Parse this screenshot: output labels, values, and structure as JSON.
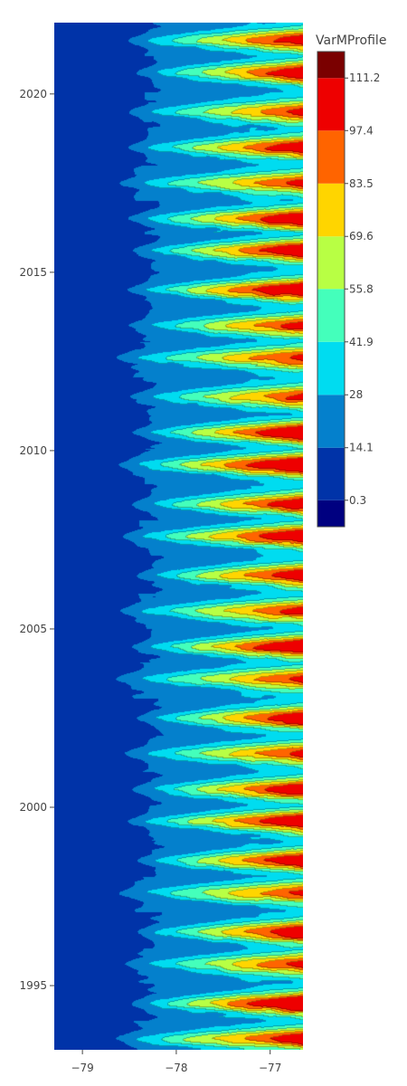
{
  "chart_data": {
    "type": "heatmap",
    "subtype": "filled-contour",
    "title": "",
    "xlabel": "",
    "ylabel": "",
    "xlim": [
      -79.3,
      -76.65
    ],
    "ylim": [
      1993.2,
      2022.0
    ],
    "x_ticks": [
      "−79",
      "−78",
      "−77"
    ],
    "x_tick_values": [
      -79,
      -78,
      -77
    ],
    "y_ticks": [
      "1995",
      "2000",
      "2005",
      "2010",
      "2015",
      "2020"
    ],
    "y_tick_values": [
      1995,
      2000,
      2005,
      2010,
      2015,
      2020
    ],
    "colorbar": {
      "title": "VarMProfile",
      "range": [
        -6.65,
        118.15
      ],
      "levels": [
        0.3,
        14.1,
        28,
        41.9,
        55.8,
        69.6,
        83.5,
        97.4,
        111.2
      ],
      "tick_labels": [
        "0.3",
        "14.1",
        "28",
        "41.9",
        "55.8",
        "69.6",
        "83.5",
        "97.4",
        "111.2"
      ],
      "colors": [
        "#000080",
        "#0033a8",
        "#0480cc",
        "#00dcf0",
        "#44ffbb",
        "#b8ff44",
        "#ffd500",
        "#ff6400",
        "#ee0000",
        "#7a0000"
      ]
    },
    "contour_colors": [
      "#0033a8",
      "#0480cc",
      "#00dcf0",
      "#44ffbb",
      "#b8ff44",
      "#ffd500",
      "#ff6400",
      "#ee0000"
    ],
    "band_boundaries": [
      14.1,
      28,
      41.9,
      55.8,
      69.6,
      83.5,
      97.4
    ],
    "pattern": "annual cycle: low values (deep blue) near x=-79 and in the first months of each year; high values (up to ~100) near x=-76.7 mid-year",
    "peak_years": [
      1993.5,
      1994.5,
      1995.6,
      1996.5,
      1997.6,
      1998.5,
      1999.6,
      2000.5,
      2001.5,
      2002.5,
      2003.6,
      2004.5,
      2005.5,
      2006.5,
      2007.6,
      2008.5,
      2009.6,
      2010.5,
      2011.5,
      2012.6,
      2013.5,
      2014.5,
      2015.6,
      2016.5,
      2017.5,
      2018.5,
      2019.5,
      2020.6,
      2021.5
    ],
    "peak_strengths": [
      0.82,
      0.98,
      0.72,
      0.86,
      0.7,
      0.88,
      0.92,
      0.86,
      0.74,
      0.86,
      0.7,
      0.93,
      0.75,
      0.86,
      0.9,
      0.84,
      0.98,
      0.93,
      0.72,
      0.74,
      0.76,
      0.96,
      0.92,
      0.89,
      0.74,
      0.83,
      0.72,
      0.84,
      0.82
    ],
    "peak_reach": [
      -78.75,
      -78.55,
      -78.65,
      -78.5,
      -78.7,
      -78.5,
      -78.6,
      -78.55,
      -78.65,
      -78.5,
      -78.75,
      -78.55,
      -78.7,
      -78.5,
      -78.65,
      -78.55,
      -78.7,
      -78.55,
      -78.6,
      -78.75,
      -78.6,
      -78.6,
      -78.55,
      -78.6,
      -78.7,
      -78.6,
      -78.6,
      -78.5,
      -78.6
    ]
  }
}
